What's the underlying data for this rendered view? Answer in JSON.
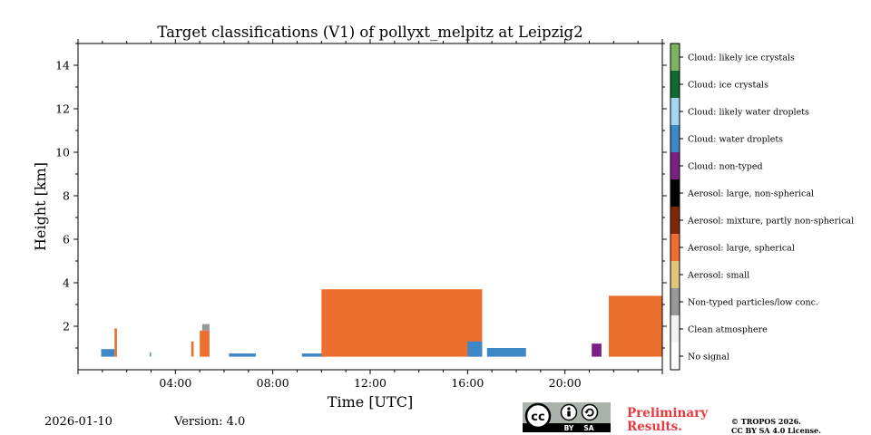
{
  "chart_data": {
    "type": "heatmap",
    "title": "Target classifications (V1) of pollyxt_melpitz at Leipzig2",
    "xlabel": "Time [UTC]",
    "ylabel": "Height [km]",
    "xlim_hours": [
      0,
      24
    ],
    "ylim_km": [
      0,
      15
    ],
    "x_ticks": [
      {
        "value": 4,
        "label": "04:00"
      },
      {
        "value": 8,
        "label": "08:00"
      },
      {
        "value": 12,
        "label": "12:00"
      },
      {
        "value": 16,
        "label": "16:00"
      },
      {
        "value": 20,
        "label": "20:00"
      }
    ],
    "y_ticks": [
      {
        "value": 2,
        "label": "2"
      },
      {
        "value": 4,
        "label": "4"
      },
      {
        "value": 6,
        "label": "6"
      },
      {
        "value": 8,
        "label": "8"
      },
      {
        "value": 10,
        "label": "10"
      },
      {
        "value": 12,
        "label": "12"
      },
      {
        "value": 14,
        "label": "14"
      }
    ],
    "classes": [
      {
        "label": "No signal",
        "color": "#ffffff"
      },
      {
        "label": "Clean atmosphere",
        "color": "#f2f2f2"
      },
      {
        "label": "Non-typed particles/low conc.",
        "color": "#999999"
      },
      {
        "label": "Aerosol: small",
        "color": "#e0c47a"
      },
      {
        "label": "Aerosol: large, spherical",
        "color": "#ec6f30"
      },
      {
        "label": "Aerosol: mixture, partly non-spherical",
        "color": "#7f2704"
      },
      {
        "label": "Aerosol: large, non-spherical",
        "color": "#000000"
      },
      {
        "label": "Cloud: non-typed",
        "color": "#7b2182"
      },
      {
        "label": "Cloud: water droplets",
        "color": "#3f88c8"
      },
      {
        "label": "Cloud: likely water droplets",
        "color": "#a6d5f2"
      },
      {
        "label": "Cloud: ice crystals",
        "color": "#0f6b2f"
      },
      {
        "label": "Cloud: likely ice crystals",
        "color": "#7db363"
      }
    ],
    "regions": [
      {
        "class": "Cloud: water droplets",
        "t_start": 0.95,
        "t_end": 1.5,
        "base_km": 0.6,
        "top_km": 0.95
      },
      {
        "class": "Aerosol: large, spherical",
        "t_start": 1.5,
        "t_end": 1.6,
        "base_km": 0.6,
        "top_km": 1.9
      },
      {
        "class": "Cloud: water droplets",
        "t_start": 2.95,
        "t_end": 3.0,
        "base_km": 0.6,
        "top_km": 0.8
      },
      {
        "class": "Aerosol: large, spherical",
        "t_start": 4.65,
        "t_end": 4.75,
        "base_km": 0.6,
        "top_km": 1.3
      },
      {
        "class": "Aerosol: large, spherical",
        "t_start": 5.0,
        "t_end": 5.4,
        "base_km": 0.6,
        "top_km": 1.8
      },
      {
        "class": "Non-typed particles/low conc.",
        "t_start": 5.1,
        "t_end": 5.4,
        "base_km": 1.8,
        "top_km": 2.1
      },
      {
        "class": "Cloud: water droplets",
        "t_start": 6.2,
        "t_end": 7.3,
        "base_km": 0.6,
        "top_km": 0.75
      },
      {
        "class": "Cloud: water droplets",
        "t_start": 9.2,
        "t_end": 10.1,
        "base_km": 0.6,
        "top_km": 0.75
      },
      {
        "class": "Aerosol: large, spherical",
        "t_start": 10.0,
        "t_end": 16.6,
        "base_km": 0.6,
        "top_km": 3.7
      },
      {
        "class": "Cloud: water droplets",
        "t_start": 16.0,
        "t_end": 16.6,
        "base_km": 0.6,
        "top_km": 1.3
      },
      {
        "class": "Cloud: water droplets",
        "t_start": 16.8,
        "t_end": 18.4,
        "base_km": 0.6,
        "top_km": 1.0
      },
      {
        "class": "Cloud: non-typed",
        "t_start": 21.1,
        "t_end": 21.5,
        "base_km": 0.6,
        "top_km": 1.2
      },
      {
        "class": "Aerosol: large, spherical",
        "t_start": 21.8,
        "t_end": 24.0,
        "base_km": 0.6,
        "top_km": 3.4
      }
    ]
  },
  "footer": {
    "date": "2026-01-10",
    "version": "Version: 4.0",
    "license_badge": {
      "cc": "cc",
      "by": "BY",
      "sa": "SA"
    },
    "preliminary_line1": "Preliminary",
    "preliminary_line2": "Results.",
    "copyright_line1": "© TROPOS 2026.",
    "copyright_line2": "CC BY SA 4.0 License."
  },
  "icons": [
    "cc-license-icon",
    "by-attribution-icon",
    "sa-share-alike-icon"
  ]
}
